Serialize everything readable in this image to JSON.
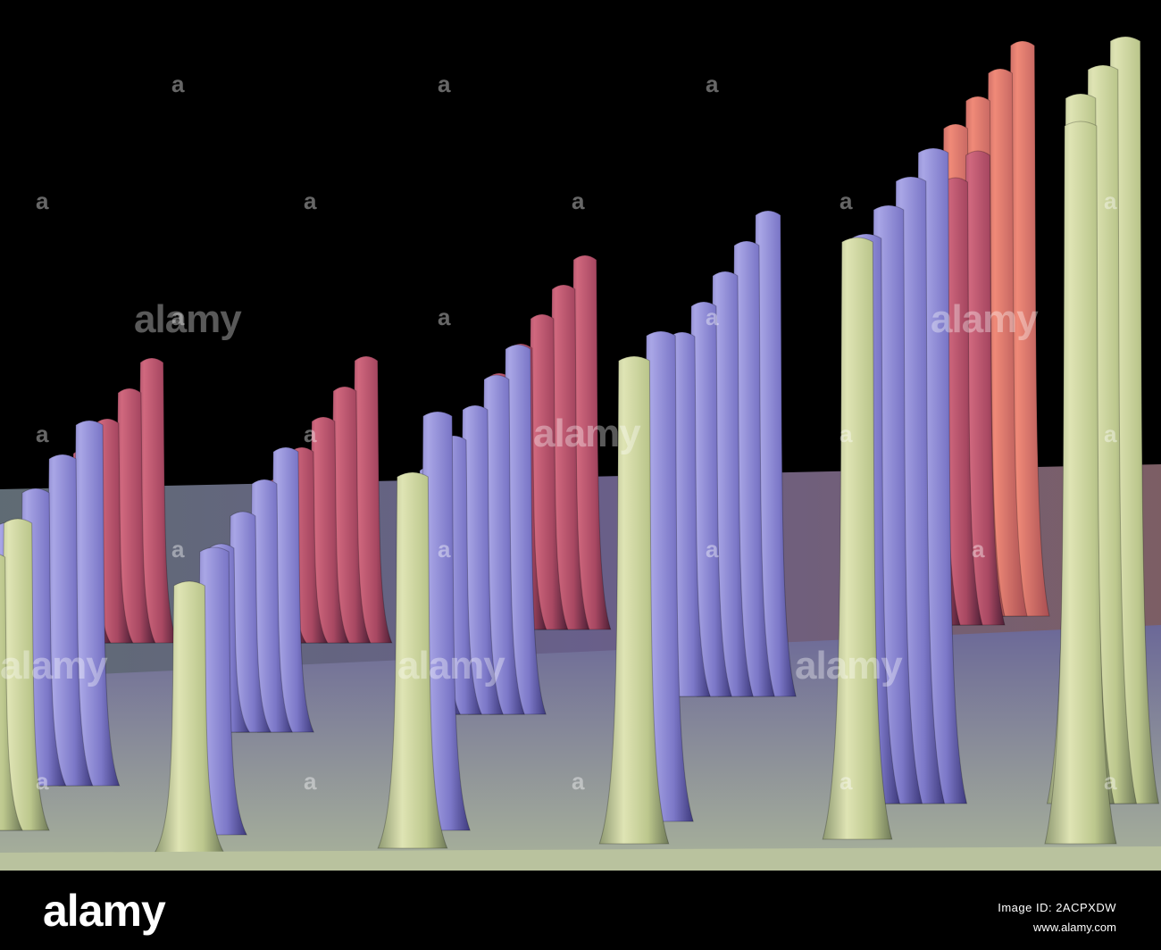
{
  "image": {
    "subject": "colored SEM micrograph of microneedle array",
    "colors": {
      "background": "#000000",
      "front_needle": "#c9d49a",
      "mid_needle": "#8a86d2",
      "back_needle": "#b8506a",
      "base_plate": "#9aa6b0"
    }
  },
  "watermark": {
    "word": "alamy",
    "mark": "a"
  },
  "footer": {
    "logo": "alamy",
    "image_id": "Image ID: 2ACPXDW",
    "url": "www.alamy.com"
  }
}
